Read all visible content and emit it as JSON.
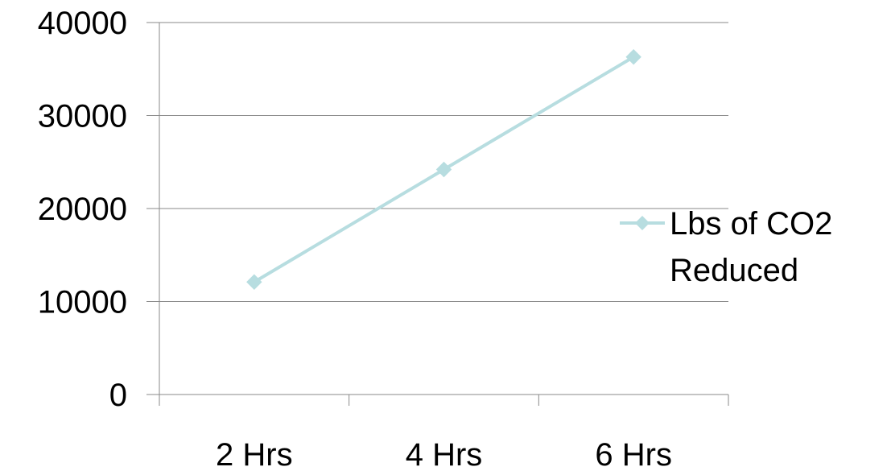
{
  "chart_data": {
    "type": "line",
    "categories": [
      "2 Hrs",
      "4 Hrs",
      "6 Hrs"
    ],
    "series": [
      {
        "name_lines": [
          "Lbs of CO2",
          "Reduced"
        ],
        "values": [
          12100,
          24200,
          36300
        ],
        "color": "#b7dde0",
        "marker": "diamond"
      }
    ],
    "ylim": [
      0,
      40000
    ],
    "yticks": [
      "0",
      "10000",
      "20000",
      "30000",
      "40000"
    ],
    "grid": true,
    "legend_position": "right"
  }
}
